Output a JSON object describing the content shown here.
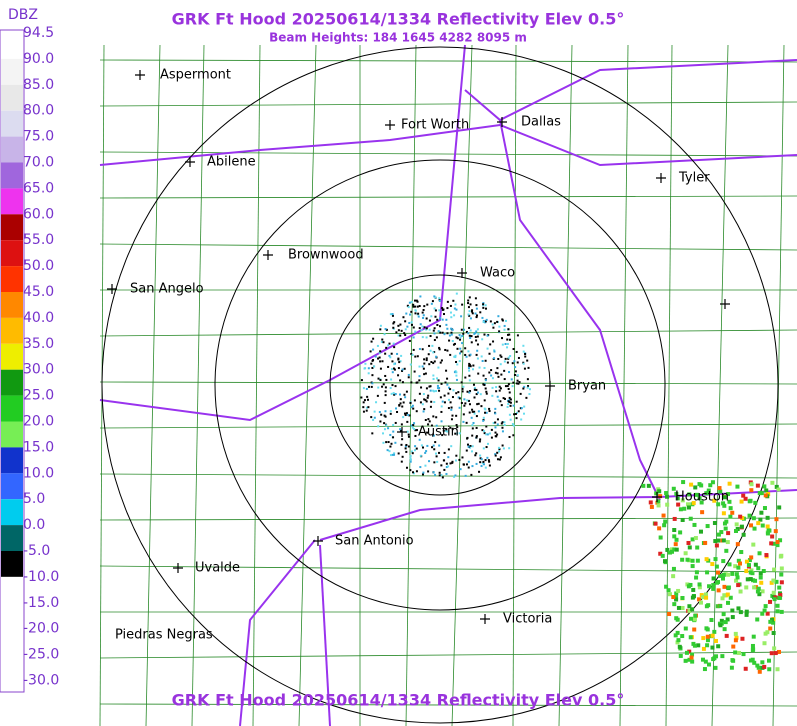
{
  "header": {
    "title": "GRK Ft Hood 20250614/1334 Reflectivity Elev 0.5°",
    "subtitle": "Beam Heights: 184 1645 4282 8095 m"
  },
  "legend": {
    "unit": "DBZ",
    "labels": [
      "94.5",
      "90.0",
      "85.0",
      "80.0",
      "75.0",
      "70.0",
      "65.0",
      "60.0",
      "55.0",
      "50.0",
      "45.0",
      "40.0",
      "35.0",
      "30.0",
      "25.0",
      "20.0",
      "15.0",
      "10.0",
      "5.0",
      "0.0",
      "-5.0",
      "-10.0",
      "-15.0",
      "-20.0",
      "-25.0",
      "-30.0"
    ]
  },
  "map": {
    "cities": [
      "Aspermont",
      "Fort Worth",
      "Dallas",
      "Abilene",
      "Tyler",
      "Brownwood",
      "Waco",
      "San Angelo",
      "Bryan",
      "Austin",
      "Houston",
      "San Antonio",
      "Uvalde",
      "Victoria",
      "Piedras Negras"
    ]
  },
  "footer": {
    "title": "GRK Ft Hood 20250614/1334 Reflectivity Elev 0.5°"
  }
}
